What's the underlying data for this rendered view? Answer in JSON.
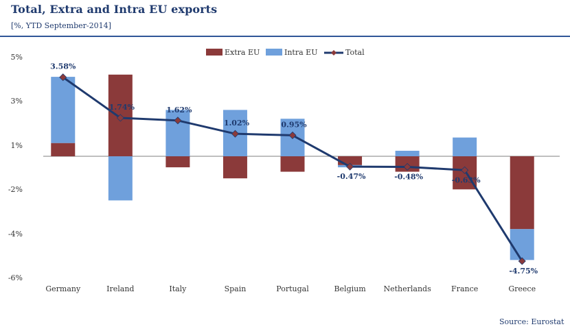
{
  "header": {
    "title": "Total, Extra and Intra EU exports",
    "subtitle": "[%, YTD September-2014]"
  },
  "footer": {
    "source": "Source: Eurostat"
  },
  "colors": {
    "extra_eu": "#8b3a3a",
    "intra_eu": "#6fa0dc",
    "total": "#1f3a6e",
    "total_marker": "#8b3a3a"
  },
  "chart_data": {
    "type": "bar",
    "stacked": true,
    "title": "Total, Extra and Intra EU exports",
    "subtitle": "[%, YTD September-2014]",
    "ylim": [
      -6,
      5
    ],
    "yticks": [
      "5%",
      "3%",
      "1%",
      "-2%",
      "-4%",
      "-6%"
    ],
    "ytick_values": [
      5,
      3,
      1,
      -2,
      -4,
      -6
    ],
    "categories": [
      "Germany",
      "Ireland",
      "Italy",
      "Spain",
      "Portugal",
      "Belgium",
      "Netherlands",
      "France",
      "Greece"
    ],
    "series": [
      {
        "name": "Extra EU",
        "kind": "bar",
        "values": [
          0.6,
          3.7,
          -0.5,
          -1.0,
          -0.7,
          -0.4,
          -0.7,
          -1.5,
          -3.3
        ]
      },
      {
        "name": "Intra EU",
        "kind": "bar",
        "values": [
          3.0,
          -2.0,
          2.1,
          2.1,
          1.7,
          -0.1,
          0.25,
          0.85,
          -1.4
        ]
      },
      {
        "name": "Total",
        "kind": "line",
        "values": [
          3.58,
          1.74,
          1.62,
          1.02,
          0.95,
          -0.47,
          -0.48,
          -0.63,
          -4.75
        ]
      }
    ],
    "data_labels": [
      "3.58%",
      "1.74%",
      "1.62%",
      "1.02%",
      "0.95%",
      "-0.47%",
      "-0.48%",
      "-0.63%",
      "-4.75%"
    ],
    "legend": [
      "Extra EU",
      "Intra EU",
      "Total"
    ],
    "legend_position": "top-center"
  }
}
